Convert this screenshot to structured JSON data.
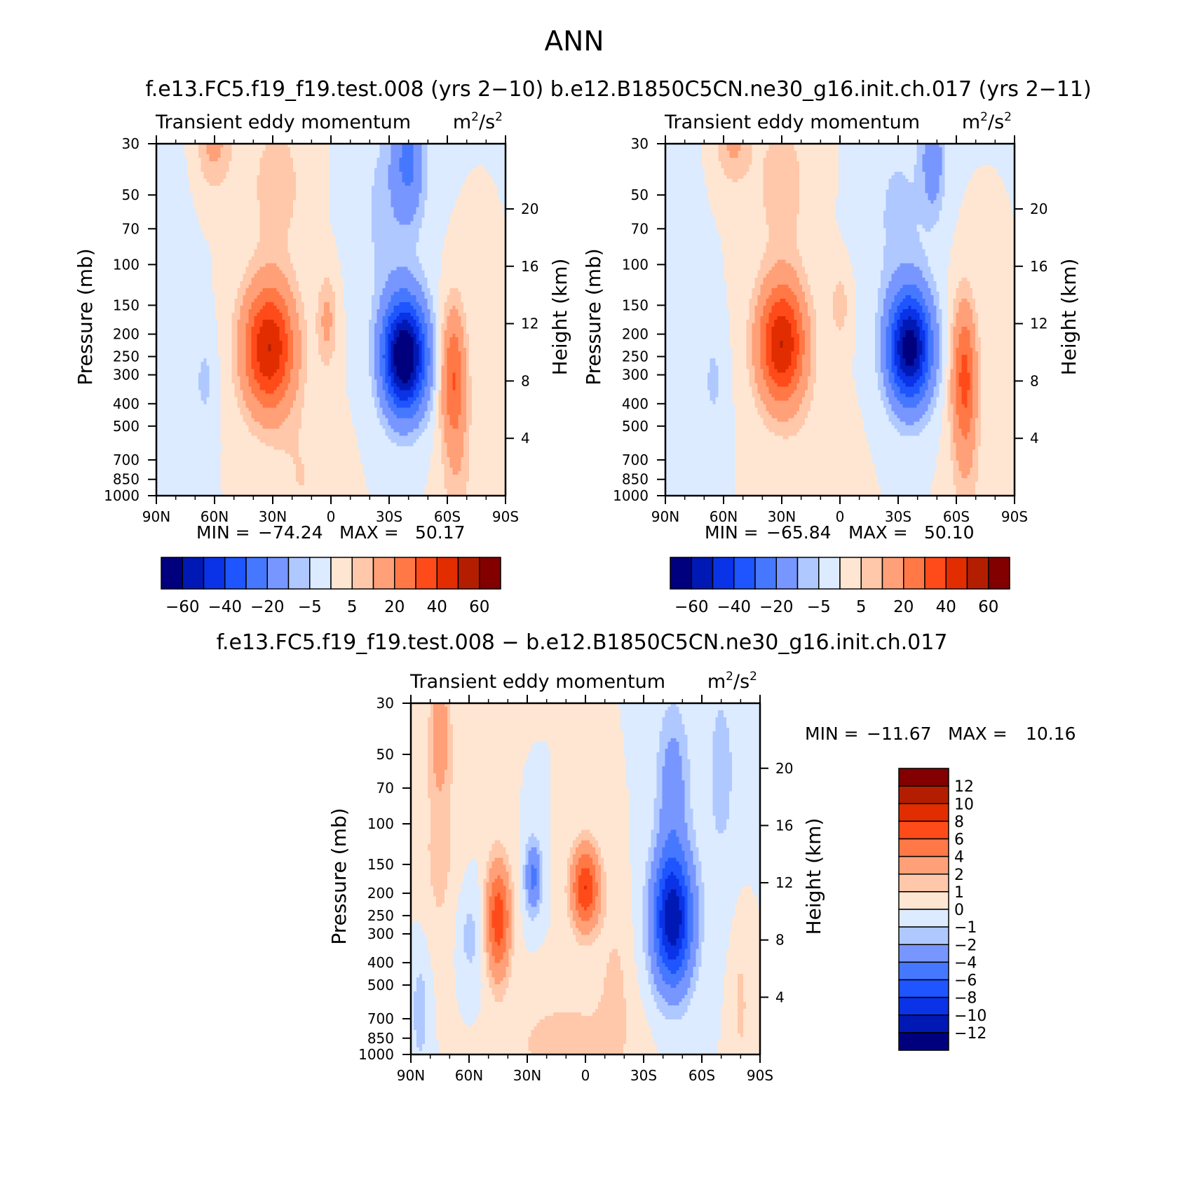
{
  "figure": {
    "title": "ANN",
    "top_panels_title": "f.e13.FC5.f19_f19.test.008 (yrs 2−10)   b.e12.B1850C5CN.ne30_g16.init.ch.017 (yrs 2−11)",
    "diff_title": "f.e13.FC5.f19_f19.test.008 − b.e12.B1850C5CN.ne30_g16.init.ch.017"
  },
  "colors": {
    "main_palette": [
      "#00007f",
      "#0019b4",
      "#0a32e6",
      "#1e55ff",
      "#4678ff",
      "#7896ff",
      "#afc8ff",
      "#dcebff",
      "#ffe6d2",
      "#ffc8aa",
      "#ffa078",
      "#ff7846",
      "#ff4b19",
      "#e12d00",
      "#b41e00",
      "#820000"
    ],
    "diff_palette": [
      "#00007f",
      "#0019b4",
      "#0a32e6",
      "#1e55ff",
      "#4678ff",
      "#7896ff",
      "#afc8ff",
      "#dcebff",
      "#ffe6d2",
      "#ffc8aa",
      "#ffa078",
      "#ff7846",
      "#ff4b19",
      "#e12d00",
      "#b41e00",
      "#820000"
    ]
  },
  "chart_data": [
    {
      "type": "heatmap",
      "title": "Transient eddy momentum",
      "units": "m²/s²",
      "units_base": "m",
      "units_mid": "/s",
      "units_sup": "2",
      "xlabel": "",
      "ylabel": "Pressure (mb)",
      "y2label": "Height (km)",
      "xlim": [
        90,
        -90
      ],
      "x_ticks": [
        {
          "v": 90,
          "label": "90N"
        },
        {
          "v": 60,
          "label": "60N"
        },
        {
          "v": 30,
          "label": "30N"
        },
        {
          "v": 0,
          "label": "0"
        },
        {
          "v": -30,
          "label": "30S"
        },
        {
          "v": -60,
          "label": "60S"
        },
        {
          "v": -90,
          "label": "90S"
        }
      ],
      "ylim": [
        1000,
        30
      ],
      "y_scale": "log",
      "y_ticks": [
        30,
        50,
        70,
        100,
        150,
        200,
        250,
        300,
        400,
        500,
        700,
        850,
        1000
      ],
      "y2_ticks": [
        {
          "v": 20,
          "label": "20"
        },
        {
          "v": 16,
          "label": "16"
        },
        {
          "v": 12,
          "label": "12"
        },
        {
          "v": 8,
          "label": "8"
        },
        {
          "v": 4,
          "label": "4"
        }
      ],
      "min_label": "MIN =",
      "min_value": "−74.24",
      "max_label": "MAX =",
      "max_value": "50.17",
      "levels": [
        -60,
        -50,
        -40,
        -30,
        -20,
        -10,
        -5,
        0,
        5,
        10,
        20,
        30,
        40,
        50,
        60
      ],
      "colorbar_labels": [
        "−60",
        "−40",
        "−20",
        "−5",
        "5",
        "20",
        "40",
        "60"
      ],
      "features": [
        {
          "lat": 32,
          "p": 230,
          "amp": 50.17,
          "wlat": 13,
          "wp": 0.62
        },
        {
          "lat": 2,
          "p": 175,
          "amp": 12,
          "wlat": 5,
          "wp": 0.45
        },
        {
          "lat": 28,
          "p": 45,
          "amp": 8,
          "wlat": 14,
          "wp": 0.7
        },
        {
          "lat": 60,
          "p": 30,
          "amp": 12,
          "wlat": 9,
          "wp": 0.45
        },
        {
          "lat": -63,
          "p": 300,
          "amp": 26,
          "wlat": 6,
          "wp": 0.65
        },
        {
          "lat": -65,
          "p": 650,
          "amp": 8,
          "wlat": 8,
          "wp": 1.1
        },
        {
          "lat": 15,
          "p": 850,
          "amp": 5,
          "wlat": 14,
          "wp": 0.7
        },
        {
          "lat": 65,
          "p": 320,
          "amp": -6,
          "wlat": 6,
          "wp": 0.5
        },
        {
          "lat": -38,
          "p": 250,
          "amp": -74.24,
          "wlat": 11,
          "wp": 0.55
        },
        {
          "lat": -40,
          "p": 35,
          "amp": -20,
          "wlat": 8,
          "wp": 0.55
        },
        {
          "lat": -30,
          "p": 60,
          "amp": -7,
          "wlat": 16,
          "wp": 1.0
        },
        {
          "lat": 85,
          "p": 150,
          "amp": -2.5,
          "wlat": 12,
          "wp": 2.0
        }
      ]
    },
    {
      "type": "heatmap",
      "title": "Transient eddy momentum",
      "units": "m²/s²",
      "units_base": "m",
      "units_mid": "/s",
      "units_sup": "2",
      "xlabel": "",
      "ylabel": "Pressure (mb)",
      "y2label": "Height (km)",
      "xlim": [
        90,
        -90
      ],
      "x_ticks": [
        {
          "v": 90,
          "label": "90N"
        },
        {
          "v": 60,
          "label": "60N"
        },
        {
          "v": 30,
          "label": "30N"
        },
        {
          "v": 0,
          "label": "0"
        },
        {
          "v": -30,
          "label": "30S"
        },
        {
          "v": -60,
          "label": "60S"
        },
        {
          "v": -90,
          "label": "90S"
        }
      ],
      "ylim": [
        1000,
        30
      ],
      "y_scale": "log",
      "y_ticks": [
        30,
        50,
        70,
        100,
        150,
        200,
        250,
        300,
        400,
        500,
        700,
        850,
        1000
      ],
      "y2_ticks": [
        {
          "v": 20,
          "label": "20"
        },
        {
          "v": 16,
          "label": "16"
        },
        {
          "v": 12,
          "label": "12"
        },
        {
          "v": 8,
          "label": "8"
        },
        {
          "v": 4,
          "label": "4"
        }
      ],
      "min_label": "MIN =",
      "min_value": "−65.84",
      "max_label": "MAX =",
      "max_value": "50.10",
      "levels": [
        -60,
        -50,
        -40,
        -30,
        -20,
        -10,
        -5,
        0,
        5,
        10,
        20,
        30,
        40,
        50,
        60
      ],
      "colorbar_labels": [
        "−60",
        "−40",
        "−20",
        "−5",
        "5",
        "20",
        "40",
        "60"
      ],
      "features": [
        {
          "lat": 30,
          "p": 220,
          "amp": 50.1,
          "wlat": 12,
          "wp": 0.6
        },
        {
          "lat": 0,
          "p": 150,
          "amp": 8,
          "wlat": 5,
          "wp": 0.35
        },
        {
          "lat": 30,
          "p": 45,
          "amp": 8,
          "wlat": 14,
          "wp": 0.7
        },
        {
          "lat": 55,
          "p": 30,
          "amp": 11,
          "wlat": 9,
          "wp": 0.4
        },
        {
          "lat": -64,
          "p": 300,
          "amp": 30,
          "wlat": 6,
          "wp": 0.7
        },
        {
          "lat": -65,
          "p": 650,
          "amp": 7,
          "wlat": 8,
          "wp": 1.1
        },
        {
          "lat": 12,
          "p": 850,
          "amp": 4,
          "wlat": 14,
          "wp": 0.7
        },
        {
          "lat": 65,
          "p": 320,
          "amp": -6,
          "wlat": 6,
          "wp": 0.5
        },
        {
          "lat": -36,
          "p": 230,
          "amp": -65.84,
          "wlat": 11,
          "wp": 0.55
        },
        {
          "lat": -48,
          "p": 35,
          "amp": -15,
          "wlat": 6,
          "wp": 0.55
        },
        {
          "lat": -30,
          "p": 60,
          "amp": -6,
          "wlat": 16,
          "wp": 1.0
        },
        {
          "lat": 85,
          "p": 150,
          "amp": -2.5,
          "wlat": 12,
          "wp": 2.0
        }
      ]
    },
    {
      "type": "heatmap",
      "title": "Transient eddy momentum",
      "units": "m²/s²",
      "units_base": "m",
      "units_mid": "/s",
      "units_sup": "2",
      "xlabel": "",
      "ylabel": "Pressure (mb)",
      "y2label": "Height (km)",
      "xlim": [
        90,
        -90
      ],
      "x_ticks": [
        {
          "v": 90,
          "label": "90N"
        },
        {
          "v": 60,
          "label": "60N"
        },
        {
          "v": 30,
          "label": "30N"
        },
        {
          "v": 0,
          "label": "0"
        },
        {
          "v": -30,
          "label": "30S"
        },
        {
          "v": -60,
          "label": "60S"
        },
        {
          "v": -90,
          "label": "90S"
        }
      ],
      "ylim": [
        1000,
        30
      ],
      "y_scale": "log",
      "y_ticks": [
        30,
        50,
        70,
        100,
        150,
        200,
        250,
        300,
        400,
        500,
        700,
        850,
        1000
      ],
      "y2_ticks": [
        {
          "v": 20,
          "label": "20"
        },
        {
          "v": 16,
          "label": "16"
        },
        {
          "v": 12,
          "label": "12"
        },
        {
          "v": 8,
          "label": "8"
        },
        {
          "v": 4,
          "label": "4"
        }
      ],
      "min_label": "MIN =",
      "min_value": "−11.67",
      "max_label": "MAX =",
      "max_value": "10.16",
      "levels": [
        -12,
        -10,
        -8,
        -6,
        -4,
        -2,
        -1,
        0,
        1,
        2,
        4,
        6,
        8,
        10,
        12
      ],
      "colorbar_labels": [
        "12",
        "10",
        "8",
        "6",
        "4",
        "2",
        "1",
        "0",
        "−1",
        "−2",
        "−4",
        "−6",
        "−8",
        "−10",
        "−12"
      ],
      "features": [
        {
          "lat": 45,
          "p": 260,
          "amp": 7.5,
          "wlat": 6,
          "wp": 0.55
        },
        {
          "lat": 0,
          "p": 190,
          "amp": 8,
          "wlat": 7,
          "wp": 0.4
        },
        {
          "lat": 27,
          "p": 170,
          "amp": -4.5,
          "wlat": 4,
          "wp": 0.35
        },
        {
          "lat": 75,
          "p": 40,
          "amp": 3,
          "wlat": 5,
          "wp": 0.6
        },
        {
          "lat": 75,
          "p": 150,
          "amp": 1.2,
          "wlat": 14,
          "wp": 1.2
        },
        {
          "lat": -45,
          "p": 260,
          "amp": -11.67,
          "wlat": 10,
          "wp": 0.65
        },
        {
          "lat": -45,
          "p": 70,
          "amp": -3,
          "wlat": 8,
          "wp": 0.8
        },
        {
          "lat": 10,
          "p": 900,
          "amp": 1.5,
          "wlat": 30,
          "wp": 0.5
        },
        {
          "lat": -15,
          "p": 500,
          "amp": 1.2,
          "wlat": 8,
          "wp": 0.8
        },
        {
          "lat": 60,
          "p": 300,
          "amp": -1.5,
          "wlat": 8,
          "wp": 0.6
        },
        {
          "lat": 85,
          "p": 600,
          "amp": -1.5,
          "wlat": 6,
          "wp": 0.8
        },
        {
          "lat": -80,
          "p": 600,
          "amp": 1.2,
          "wlat": 5,
          "wp": 0.8
        },
        {
          "lat": -70,
          "p": 60,
          "amp": -1.3,
          "wlat": 10,
          "wp": 1.2
        }
      ]
    }
  ]
}
